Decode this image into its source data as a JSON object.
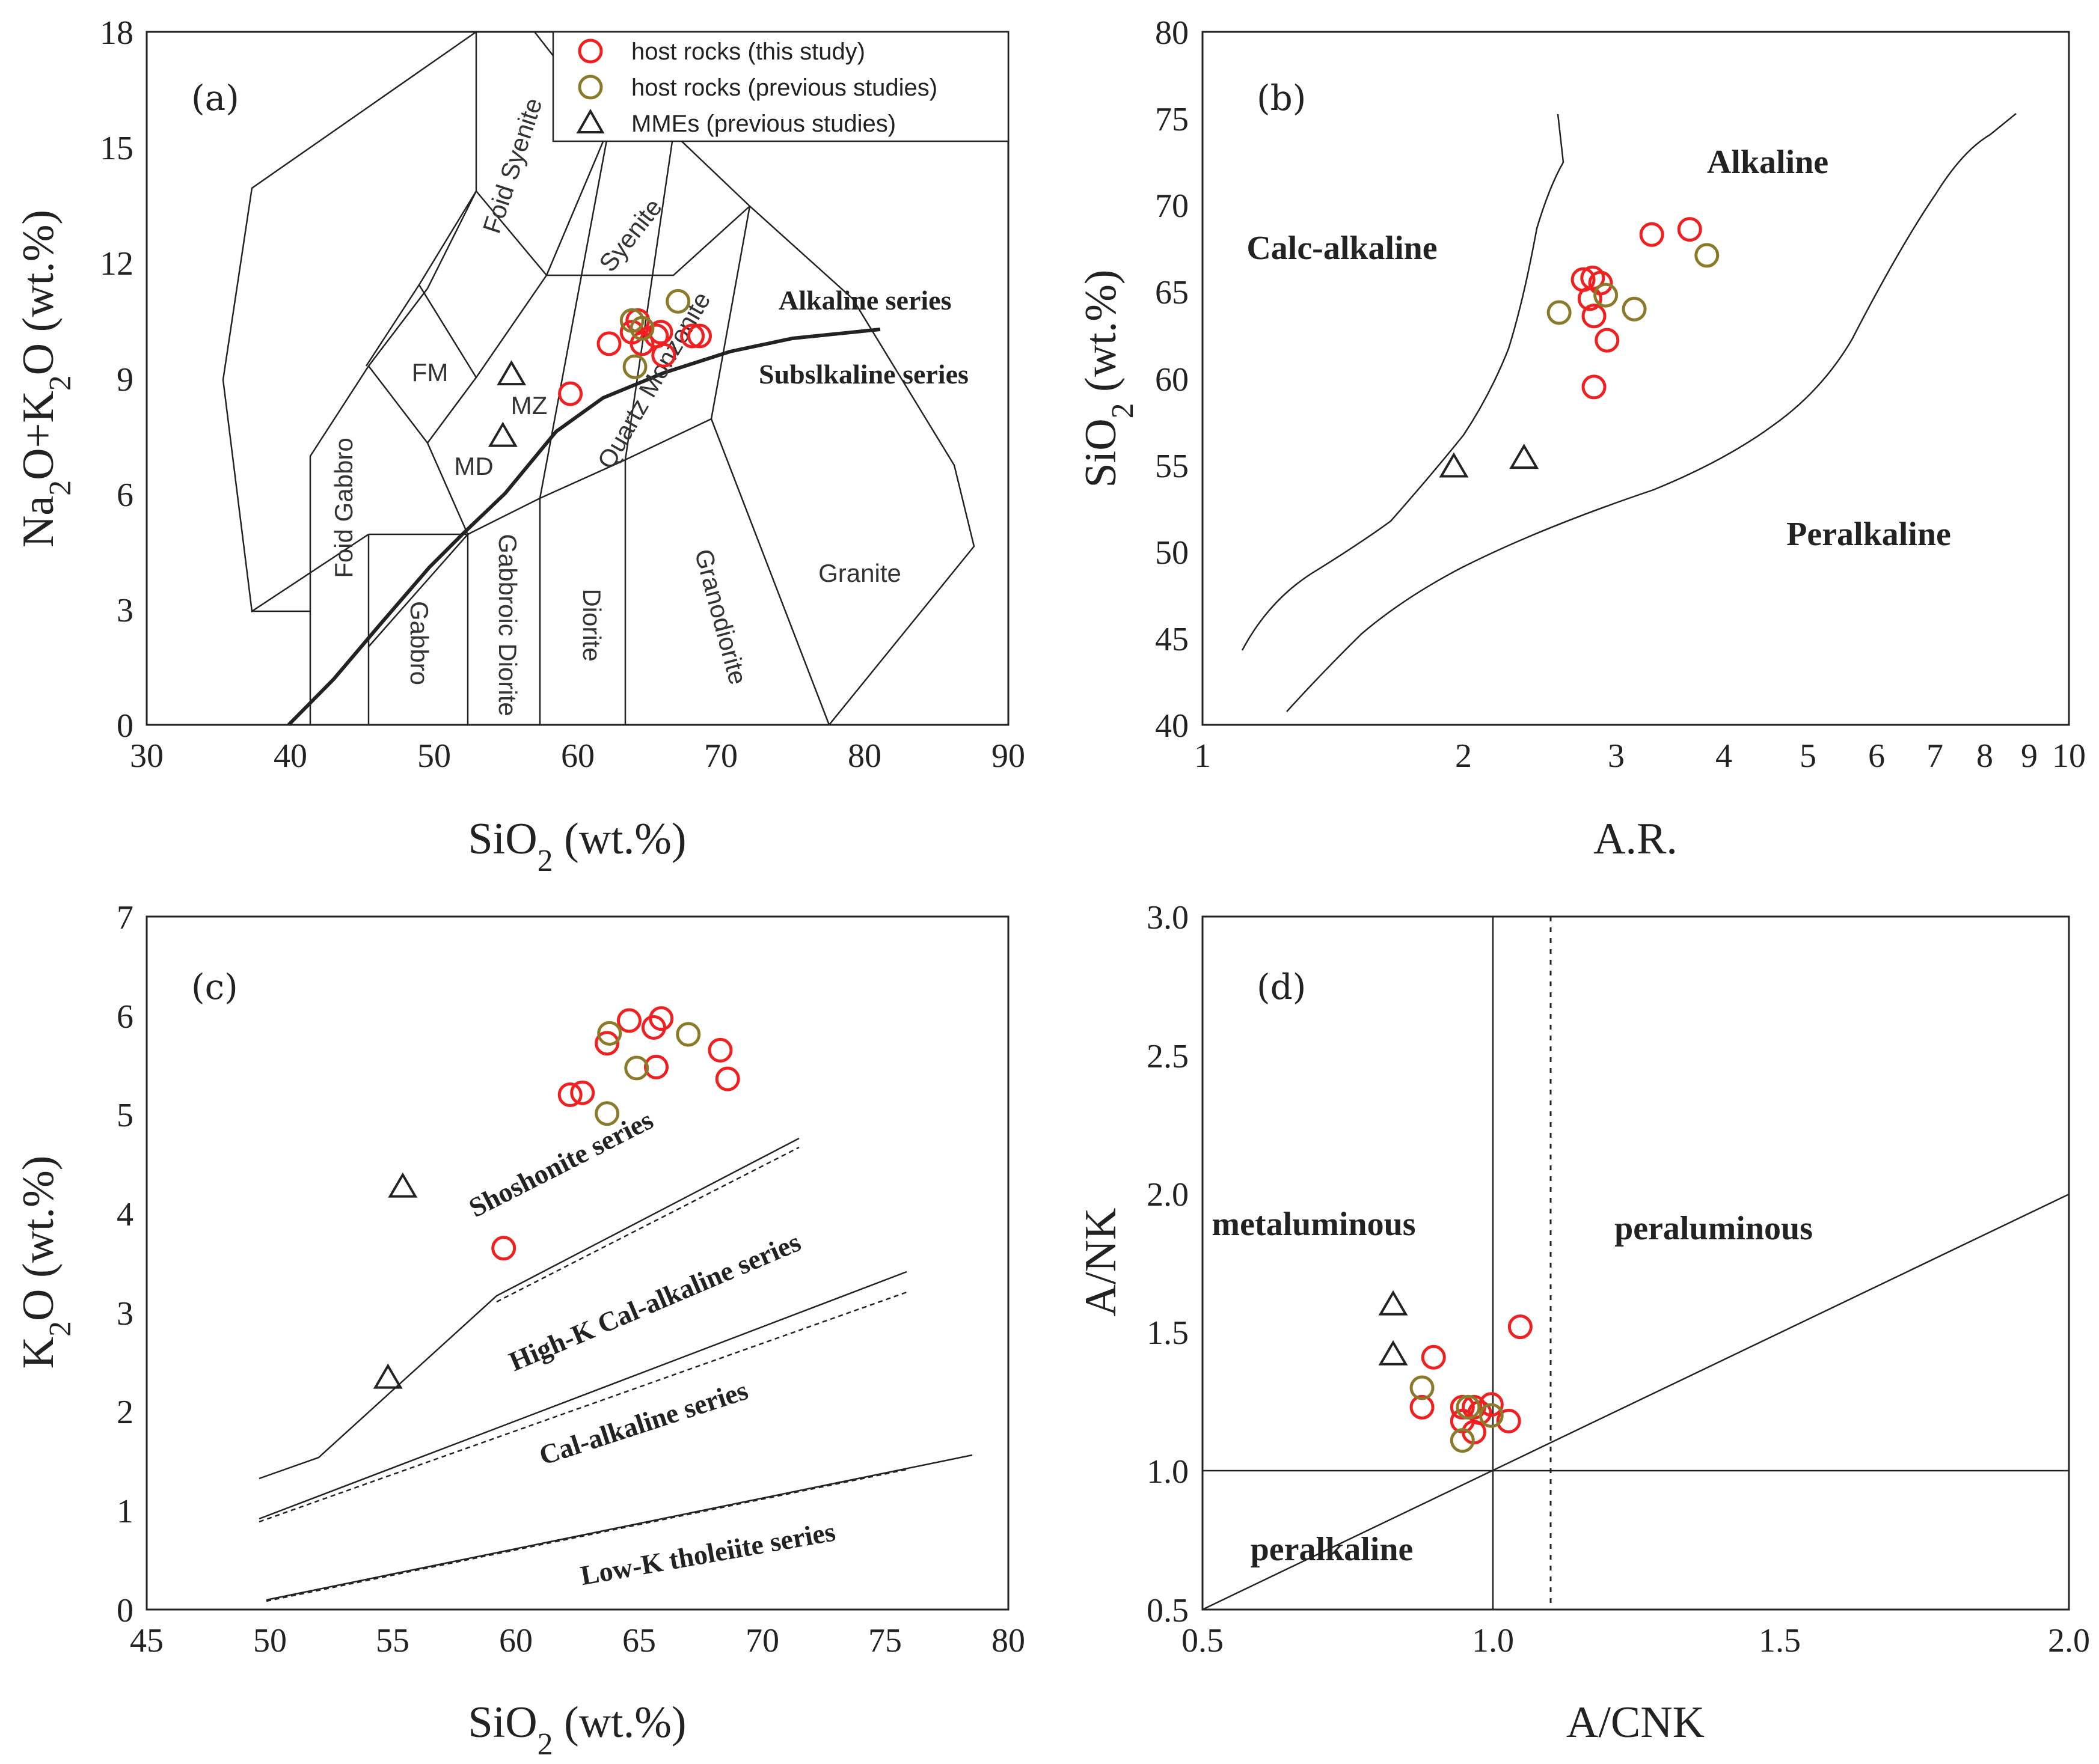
{
  "colors": {
    "this_study": "#f02020",
    "previous": "#8a7a2a",
    "mme": "#222222"
  },
  "chart_data": [
    {
      "panel": "(a)",
      "type": "scatter",
      "title": "",
      "xlabel": "SiO2 (wt.%)",
      "ylabel": "Na2O+K2O (wt.%)",
      "xlim": [
        30,
        90
      ],
      "ylim": [
        0,
        18
      ],
      "xticks": [
        30,
        40,
        50,
        60,
        70,
        80,
        90
      ],
      "yticks": [
        0,
        3,
        6,
        9,
        12,
        15,
        18
      ],
      "legend": [
        "host rocks (this study)",
        "host rocks (previous studies)",
        "MMEs (previous studies)"
      ],
      "legend_position": "top-right",
      "regions": [
        "Foid Syenite",
        "Syenite",
        "FM",
        "MZ",
        "MD",
        "Quartz Monzonite",
        "Foid Gabbro",
        "Gabbro",
        "Gabbroic Diorite",
        "Diorite",
        "Granodiorite",
        "Granite"
      ],
      "annotations": [
        "Alkaline series",
        "Subslkaline series"
      ],
      "series": [
        {
          "name": "host rocks (this study)",
          "marker": "circle",
          "points": [
            [
              59.5,
              8.6
            ],
            [
              62.2,
              9.9
            ],
            [
              63.8,
              10.2
            ],
            [
              64.2,
              10.5
            ],
            [
              64.5,
              9.9
            ],
            [
              65.5,
              10.1
            ],
            [
              65.8,
              10.2
            ],
            [
              66.0,
              9.6
            ],
            [
              68.0,
              10.1
            ],
            [
              68.5,
              10.1
            ]
          ]
        },
        {
          "name": "host rocks (previous studies)",
          "marker": "circle",
          "points": [
            [
              63.8,
              10.5
            ],
            [
              64.0,
              9.3
            ],
            [
              64.5,
              10.3
            ],
            [
              67.0,
              11.0
            ]
          ]
        },
        {
          "name": "MMEs (previous studies)",
          "marker": "triangle",
          "points": [
            [
              55.4,
              9.1
            ],
            [
              54.8,
              7.5
            ]
          ]
        }
      ]
    },
    {
      "panel": "(b)",
      "type": "scatter",
      "xscale": "log",
      "xlabel": "A.R.",
      "ylabel": "SiO2 (wt.%)",
      "xlim": [
        1,
        10
      ],
      "ylim": [
        40,
        80
      ],
      "xticks": [
        1,
        2,
        3,
        4,
        5,
        6,
        7,
        8,
        9,
        10
      ],
      "yticks": [
        40,
        45,
        50,
        55,
        60,
        65,
        70,
        75,
        80
      ],
      "regions": [
        "Alkaline",
        "Calc-alkaline",
        "Peralkaline"
      ],
      "series": [
        {
          "name": "host rocks (this study)",
          "marker": "circle",
          "points": [
            [
              2.75,
              65.7
            ],
            [
              2.82,
              65.8
            ],
            [
              2.88,
              65.5
            ],
            [
              2.8,
              64.6
            ],
            [
              2.83,
              63.6
            ],
            [
              2.93,
              62.2
            ],
            [
              2.83,
              59.5
            ],
            [
              3.3,
              68.3
            ],
            [
              3.65,
              68.6
            ]
          ]
        },
        {
          "name": "host rocks (previous studies)",
          "marker": "circle",
          "points": [
            [
              2.58,
              63.8
            ],
            [
              2.92,
              64.8
            ],
            [
              3.15,
              64.0
            ],
            [
              3.82,
              67.1
            ]
          ]
        },
        {
          "name": "MMEs (previous studies)",
          "marker": "triangle",
          "points": [
            [
              1.95,
              54.9
            ],
            [
              2.35,
              55.4
            ]
          ]
        }
      ]
    },
    {
      "panel": "(c)",
      "type": "scatter",
      "xlabel": "SiO2 (wt.%)",
      "ylabel": "K2O (wt.%)",
      "xlim": [
        45,
        80
      ],
      "ylim": [
        0,
        7
      ],
      "xticks": [
        45,
        50,
        55,
        60,
        65,
        70,
        75,
        80
      ],
      "yticks": [
        0,
        1,
        2,
        3,
        4,
        5,
        6,
        7
      ],
      "regions": [
        "Shoshonite series",
        "High-K Cal-alkaline series",
        "Cal-alkaline series",
        "Low-K tholeiite series"
      ],
      "series": [
        {
          "name": "host rocks (this study)",
          "marker": "circle",
          "points": [
            [
              59.5,
              3.65
            ],
            [
              62.2,
              5.2
            ],
            [
              62.7,
              5.22
            ],
            [
              63.7,
              5.72
            ],
            [
              64.6,
              5.95
            ],
            [
              65.6,
              5.88
            ],
            [
              65.9,
              5.97
            ],
            [
              65.7,
              5.48
            ],
            [
              68.3,
              5.65
            ],
            [
              68.6,
              5.36
            ]
          ]
        },
        {
          "name": "host rocks (previous studies)",
          "marker": "circle",
          "points": [
            [
              63.8,
              5.82
            ],
            [
              64.9,
              5.47
            ],
            [
              63.7,
              5.01
            ],
            [
              67.0,
              5.81
            ]
          ]
        },
        {
          "name": "MMEs (previous studies)",
          "marker": "triangle",
          "points": [
            [
              55.4,
              4.27
            ],
            [
              54.8,
              2.34
            ]
          ]
        }
      ]
    },
    {
      "panel": "(d)",
      "type": "scatter",
      "xlabel": "A/CNK",
      "ylabel": "A/NK",
      "xlim": [
        0.5,
        2.0
      ],
      "ylim": [
        0.5,
        3.0
      ],
      "xticks": [
        "0.5",
        "1.0",
        "1.5",
        "2.0"
      ],
      "yticks": [
        "0.5",
        "1.0",
        "1.5",
        "2.0",
        "2.5",
        "3.0"
      ],
      "regions": [
        "metaluminous",
        "peraluminous",
        "peralkaline"
      ],
      "series": [
        {
          "name": "host rocks (this study)",
          "marker": "circle",
          "points": [
            [
              0.9,
              1.41
            ],
            [
              0.88,
              1.23
            ],
            [
              0.95,
              1.23
            ],
            [
              0.95,
              1.18
            ],
            [
              0.97,
              1.23
            ],
            [
              0.98,
              1.21
            ],
            [
              1.0,
              1.24
            ],
            [
              0.97,
              1.14
            ],
            [
              1.03,
              1.18
            ],
            [
              1.05,
              1.52
            ]
          ]
        },
        {
          "name": "host rocks (previous studies)",
          "marker": "circle",
          "points": [
            [
              0.88,
              1.3
            ],
            [
              0.96,
              1.23
            ],
            [
              0.95,
              1.11
            ],
            [
              1.0,
              1.2
            ]
          ]
        },
        {
          "name": "MMEs (previous studies)",
          "marker": "triangle",
          "points": [
            [
              0.83,
              1.6
            ],
            [
              0.83,
              1.42
            ]
          ]
        }
      ]
    }
  ]
}
